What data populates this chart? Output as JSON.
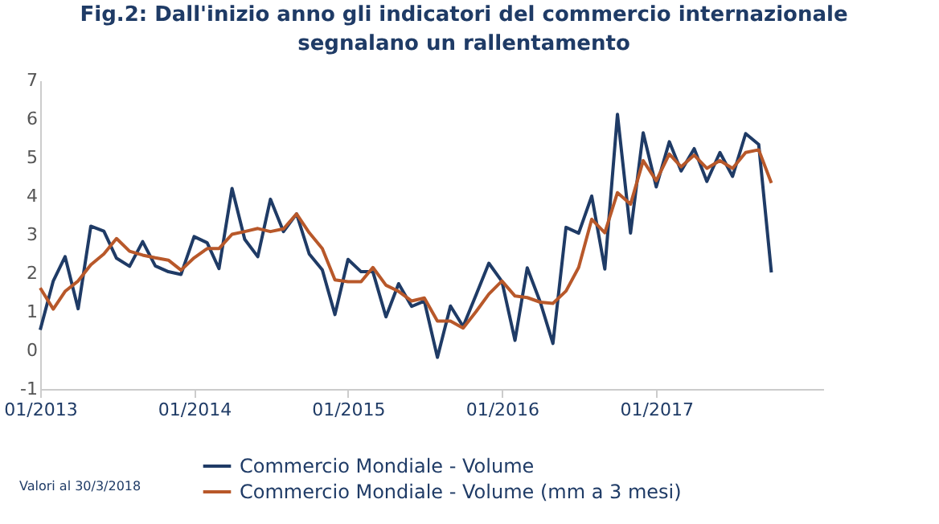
{
  "chart_data": {
    "type": "line",
    "title": "Fig.2: Dall'inizio anno gli indicatori del commercio internazionale\nsegnalano un rallentamento",
    "x": [
      "2013-01",
      "2013-02",
      "2013-03",
      "2013-04",
      "2013-05",
      "2013-06",
      "2013-07",
      "2013-08",
      "2013-09",
      "2013-10",
      "2013-11",
      "2013-12",
      "2014-01",
      "2014-02",
      "2014-03",
      "2014-04",
      "2014-05",
      "2014-06",
      "2014-07",
      "2014-08",
      "2014-09",
      "2014-10",
      "2014-11",
      "2014-12",
      "2015-01",
      "2015-02",
      "2015-03",
      "2015-04",
      "2015-05",
      "2015-06",
      "2015-07",
      "2015-08",
      "2015-09",
      "2015-10",
      "2015-11",
      "2015-12",
      "2016-01",
      "2016-02",
      "2016-03",
      "2016-04",
      "2016-05",
      "2016-06",
      "2016-07",
      "2016-08",
      "2016-09",
      "2016-10",
      "2016-11",
      "2016-12",
      "2017-01",
      "2017-02",
      "2017-03",
      "2017-04",
      "2017-05",
      "2017-06",
      "2017-07",
      "2017-08",
      "2017-09",
      "2017-10"
    ],
    "series": [
      {
        "name": "Commercio Mondiale - Volume",
        "color": "#1f3b66",
        "values": [
          0.53,
          1.8,
          2.43,
          1.08,
          3.22,
          3.09,
          2.39,
          2.18,
          2.82,
          2.19,
          2.04,
          1.97,
          2.95,
          2.79,
          2.12,
          4.2,
          2.88,
          2.43,
          3.92,
          3.08,
          3.54,
          2.5,
          2.09,
          0.93,
          2.36,
          2.04,
          2.04,
          0.87,
          1.73,
          1.14,
          1.28,
          -0.18,
          1.15,
          0.62,
          1.45,
          2.26,
          1.79,
          0.26,
          2.14,
          1.25,
          0.18,
          3.19,
          3.04,
          4.0,
          2.11,
          6.12,
          3.04,
          5.64,
          4.24,
          5.41,
          4.65,
          5.23,
          4.38,
          5.13,
          4.51,
          5.62,
          5.34,
          2.02
        ]
      },
      {
        "name": "Commercio Mondiale - Volume (mm a 3 mesi)",
        "color": "#b8582a",
        "values": [
          1.62,
          1.07,
          1.53,
          1.8,
          2.22,
          2.5,
          2.9,
          2.57,
          2.47,
          2.4,
          2.34,
          2.08,
          2.4,
          2.64,
          2.64,
          3.01,
          3.08,
          3.16,
          3.08,
          3.15,
          3.54,
          3.05,
          2.64,
          1.83,
          1.78,
          1.78,
          2.15,
          1.69,
          1.53,
          1.28,
          1.36,
          0.76,
          0.76,
          0.58,
          1.01,
          1.46,
          1.8,
          1.41,
          1.37,
          1.25,
          1.22,
          1.54,
          2.15,
          3.4,
          3.05,
          4.09,
          3.79,
          4.92,
          4.4,
          5.09,
          4.76,
          5.06,
          4.72,
          4.92,
          4.72,
          5.13,
          5.2,
          4.34
        ]
      }
    ],
    "xlim": [
      "2013-01",
      "2018-02"
    ],
    "xticks": [
      {
        "value": "2013-01",
        "label": "01/2013"
      },
      {
        "value": "2014-01",
        "label": "01/2014"
      },
      {
        "value": "2015-01",
        "label": "01/2015"
      },
      {
        "value": "2016-01",
        "label": "01/2016"
      },
      {
        "value": "2017-01",
        "label": "01/2017"
      }
    ],
    "ylim": [
      -1,
      7
    ],
    "yticks": [
      -1,
      0,
      1,
      2,
      3,
      4,
      5,
      6,
      7
    ],
    "grid": false,
    "legend": "bottom",
    "marker": "none",
    "line_style": "solid",
    "annotations": [
      "Valori al 30/3/2018"
    ]
  }
}
